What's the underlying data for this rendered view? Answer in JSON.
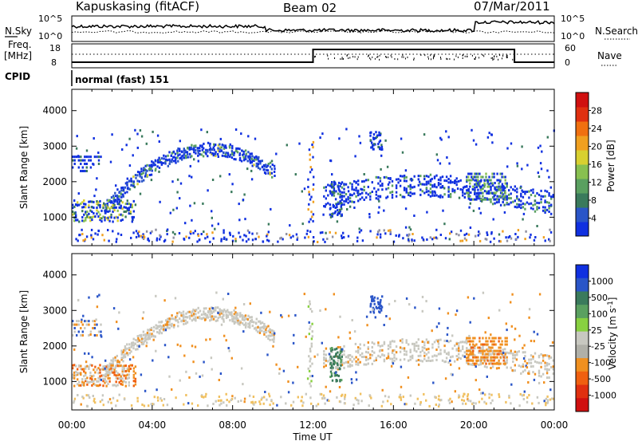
{
  "header": {
    "station": "Kapuskasing (fitACF)",
    "beam": "Beam 02",
    "date": "07/Mar/2011"
  },
  "top_strip": {
    "left_label": "N.Sky",
    "right_label": "N.Search",
    "right_ticks": [
      "10^5",
      "10^0"
    ],
    "left_ticks": [
      "10^5",
      "10^0"
    ]
  },
  "freq_strip": {
    "left_label_1": "Freq.",
    "left_label_2": "[MHz]",
    "left_ticks": [
      "18",
      "8"
    ],
    "right_label": "Nave",
    "right_ticks": [
      "60",
      "0"
    ]
  },
  "cpid": {
    "label": "CPID",
    "value": "normal (fast) 151"
  },
  "colors": {
    "power_scale": [
      "#1030e0",
      "#2a55c8",
      "#3a7a5c",
      "#5aa060",
      "#88c050",
      "#d8d030",
      "#f0a020",
      "#f07010",
      "#e03010",
      "#d01010"
    ],
    "velocity_scale": [
      "#1030e0",
      "#2a55c8",
      "#3a7a5c",
      "#5aa060",
      "#88d040",
      "#c8c8c0",
      "#b0b0a8",
      "#f09020",
      "#f06010",
      "#e03010",
      "#d01010"
    ]
  },
  "chart_data": [
    {
      "type": "heatmap",
      "title": "",
      "xlabel": "Time UT",
      "ylabel": "Slant Range [km]",
      "x_ticks": [
        "00:00",
        "04:00",
        "08:00",
        "12:00",
        "16:00",
        "20:00",
        "00:00"
      ],
      "y_ticks": [
        "1000",
        "2000",
        "3000",
        "4000"
      ],
      "ylim": [
        200,
        4600
      ],
      "colorbar": {
        "label": "Power [dB]",
        "ticks": [
          "4",
          "8",
          "12",
          "16",
          "20",
          "24",
          "28"
        ]
      }
    },
    {
      "type": "heatmap",
      "title": "",
      "xlabel": "Time UT",
      "ylabel": "Slant Range [km]",
      "x_ticks": [
        "00:00",
        "04:00",
        "08:00",
        "12:00",
        "16:00",
        "20:00",
        "00:00"
      ],
      "y_ticks": [
        "1000",
        "2000",
        "3000",
        "4000"
      ],
      "ylim": [
        200,
        4600
      ],
      "colorbar": {
        "label": "Velocity [m s^-1]",
        "ticks": [
          "1000",
          "500",
          "100",
          "25",
          "-25",
          "-100",
          "-500",
          "-1000"
        ]
      }
    }
  ]
}
